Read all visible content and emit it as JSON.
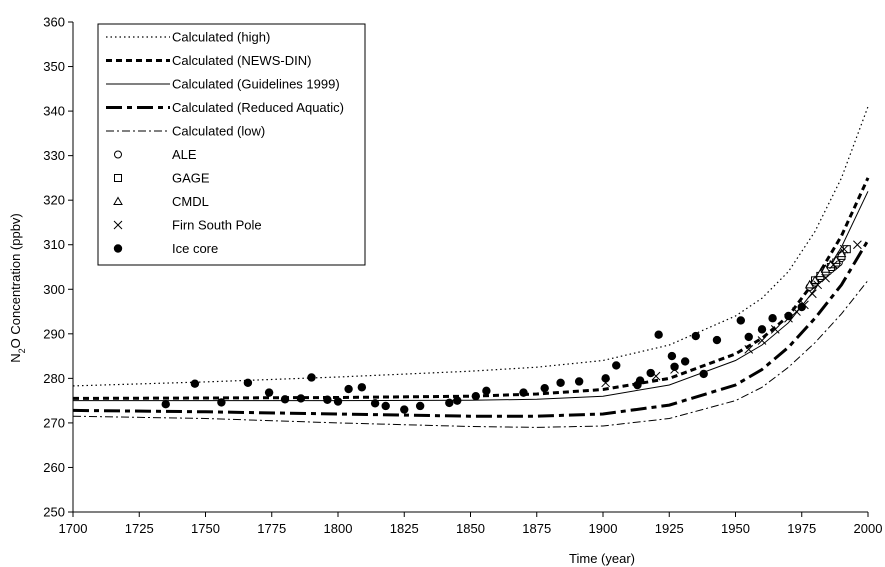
{
  "chart_data": {
    "type": "line",
    "title": "",
    "xlabel": "Time (year)",
    "ylabel_main": "N",
    "ylabel_sub": "2",
    "ylabel_rest": "O Concentration (ppbv)",
    "xlim": [
      1700,
      2000
    ],
    "ylim": [
      250,
      360
    ],
    "xticks": [
      "1700",
      "1725",
      "1750",
      "1775",
      "1800",
      "1825",
      "1850",
      "1875",
      "1900",
      "1925",
      "1950",
      "1975",
      "2000"
    ],
    "yticks": [
      "250",
      "260",
      "270",
      "280",
      "290",
      "300",
      "310",
      "320",
      "330",
      "340",
      "350",
      "360"
    ],
    "grid": false,
    "legend_position": "top-left",
    "series": [
      {
        "name": "Calculated (high)",
        "style": "dotted",
        "x": [
          1700,
          1750,
          1800,
          1850,
          1875,
          1900,
          1925,
          1950,
          1960,
          1970,
          1980,
          1990,
          2000
        ],
        "y": [
          278.3,
          279.2,
          280.3,
          281.6,
          282.5,
          284.0,
          287.5,
          294.0,
          298.0,
          304.0,
          313.0,
          325.0,
          341.0
        ]
      },
      {
        "name": "Calculated (NEWS-DIN)",
        "style": "dashed-short",
        "x": [
          1700,
          1750,
          1800,
          1850,
          1875,
          1900,
          1925,
          1950,
          1960,
          1970,
          1980,
          1990,
          2000
        ],
        "y": [
          275.5,
          275.6,
          275.7,
          276.0,
          276.5,
          277.5,
          280.0,
          285.5,
          289.0,
          294.0,
          302.0,
          312.0,
          325.0
        ]
      },
      {
        "name": "Calculated (Guidelines 1999)",
        "style": "solid",
        "x": [
          1700,
          1750,
          1800,
          1850,
          1875,
          1900,
          1925,
          1950,
          1960,
          1970,
          1980,
          1990,
          2000
        ],
        "y": [
          275.0,
          275.0,
          275.0,
          275.1,
          275.3,
          276.0,
          278.5,
          284.0,
          287.5,
          292.5,
          300.0,
          309.5,
          322.0
        ]
      },
      {
        "name": "Calculated (Reduced Aquatic)",
        "style": "dash-dot-long",
        "x": [
          1700,
          1750,
          1800,
          1850,
          1875,
          1900,
          1925,
          1950,
          1960,
          1970,
          1980,
          1990,
          2000
        ],
        "y": [
          272.8,
          272.5,
          272.0,
          271.5,
          271.5,
          272.0,
          274.0,
          278.5,
          282.0,
          287.0,
          293.5,
          301.0,
          311.0
        ]
      },
      {
        "name": "Calculated (low)",
        "style": "dash-dot",
        "x": [
          1700,
          1750,
          1800,
          1850,
          1875,
          1900,
          1925,
          1950,
          1960,
          1970,
          1980,
          1990,
          2000
        ],
        "y": [
          271.5,
          271.0,
          270.0,
          269.2,
          269.0,
          269.3,
          271.0,
          275.0,
          278.0,
          282.5,
          288.0,
          294.5,
          302.0
        ]
      }
    ],
    "markers": [
      {
        "name": "ALE",
        "symbol": "circle-open",
        "x": [
          1978,
          1979,
          1980,
          1981,
          1982,
          1983,
          1984,
          1985,
          1986,
          1987,
          1988,
          1989,
          1990
        ],
        "y": [
          300.5,
          301.0,
          301.5,
          302.0,
          302.5,
          303.0,
          303.5,
          304.0,
          304.5,
          305.0,
          305.5,
          306.0,
          307.0
        ]
      },
      {
        "name": "GAGE",
        "symbol": "square-open",
        "x": [
          1980,
          1982,
          1984,
          1986,
          1988,
          1990,
          1992
        ],
        "y": [
          302.0,
          303.0,
          304.0,
          305.0,
          306.0,
          307.5,
          309.0
        ]
      },
      {
        "name": "CMDL",
        "symbol": "triangle-open",
        "x": [
          1978,
          1980,
          1982,
          1984,
          1986,
          1988,
          1990
        ],
        "y": [
          301.0,
          302.0,
          303.5,
          304.5,
          305.5,
          306.5,
          308.0
        ]
      },
      {
        "name": "Firn South Pole",
        "symbol": "x",
        "x": [
          1901,
          1920,
          1927,
          1955,
          1960,
          1965,
          1970,
          1973,
          1976,
          1979,
          1981,
          1984,
          1987,
          1991,
          1996
        ],
        "y": [
          279.0,
          280.5,
          282.0,
          286.5,
          288.5,
          291.0,
          293.5,
          295.0,
          296.5,
          299.0,
          301.0,
          302.5,
          305.5,
          309.0,
          310.0
        ]
      },
      {
        "name": "Ice core",
        "symbol": "circle-filled",
        "x": [
          1735,
          1746,
          1756,
          1766,
          1774,
          1780,
          1786,
          1790,
          1796,
          1800,
          1804,
          1809,
          1814,
          1818,
          1825,
          1831,
          1842,
          1845,
          1852,
          1856,
          1870,
          1878,
          1884,
          1891,
          1901,
          1905,
          1913,
          1914,
          1918,
          1921,
          1926,
          1927,
          1931,
          1935,
          1938,
          1943,
          1952,
          1955,
          1960,
          1964,
          1970,
          1975
        ],
        "y": [
          274.2,
          278.8,
          274.6,
          279.0,
          276.8,
          275.3,
          275.5,
          280.2,
          275.2,
          274.8,
          277.6,
          278.0,
          274.4,
          273.8,
          273.0,
          273.8,
          274.5,
          275.0,
          276.0,
          277.2,
          276.8,
          277.8,
          279.0,
          279.3,
          280.0,
          282.9,
          278.5,
          279.5,
          281.2,
          289.8,
          285.0,
          282.6,
          283.8,
          289.5,
          281.0,
          288.6,
          293.0,
          289.3,
          291.0,
          293.5,
          294.0,
          296.0
        ]
      }
    ]
  }
}
